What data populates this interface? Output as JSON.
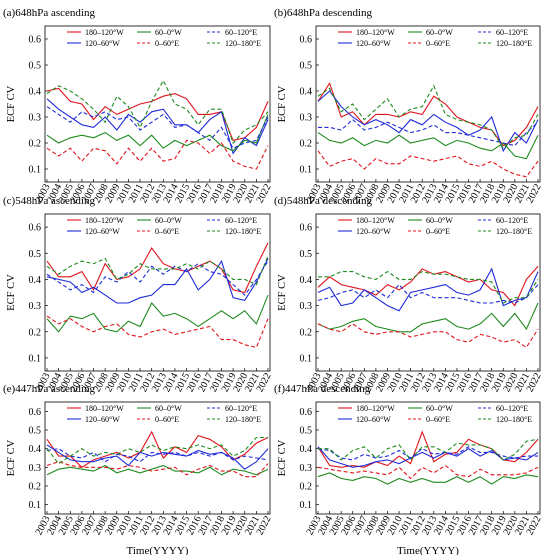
{
  "figure": {
    "xlabel": "Time(YYYY)",
    "ylabel": "ECF CV"
  },
  "legend_entries": [
    {
      "name": "180–120°W",
      "color": "#e0141c",
      "dash": false
    },
    {
      "name": "120–60°W",
      "color": "#1f2bd8",
      "dash": false
    },
    {
      "name": "60–0°W",
      "color": "#1f8a1f",
      "dash": false
    },
    {
      "name": "0–60°E",
      "color": "#e0141c",
      "dash": true
    },
    {
      "name": "60–120°E",
      "color": "#1f2bd8",
      "dash": true
    },
    {
      "name": "120–180°E",
      "color": "#1f8a1f",
      "dash": true
    }
  ],
  "chart_data": [
    {
      "type": "line",
      "title": "(a)648hPa ascending",
      "x": [
        2003,
        2004,
        2005,
        2006,
        2007,
        2008,
        2009,
        2010,
        2011,
        2012,
        2013,
        2014,
        2015,
        2016,
        2017,
        2018,
        2019,
        2020,
        2021,
        2022
      ],
      "ylim": [
        0.05,
        0.65
      ],
      "yticks": [
        0.1,
        0.2,
        0.3,
        0.4,
        0.5,
        0.6
      ],
      "series": [
        {
          "name": "180–120°W",
          "values": [
            0.4,
            0.41,
            0.36,
            0.35,
            0.29,
            0.34,
            0.31,
            0.33,
            0.35,
            0.36,
            0.38,
            0.39,
            0.37,
            0.31,
            0.31,
            0.32,
            0.21,
            0.22,
            0.26,
            0.36
          ]
        },
        {
          "name": "120–60°W",
          "values": [
            0.37,
            0.33,
            0.3,
            0.27,
            0.26,
            0.3,
            0.25,
            0.31,
            0.28,
            0.32,
            0.33,
            0.27,
            0.27,
            0.24,
            0.29,
            0.32,
            0.16,
            0.22,
            0.19,
            0.29
          ]
        },
        {
          "name": "60–0°W",
          "values": [
            0.23,
            0.2,
            0.22,
            0.23,
            0.22,
            0.24,
            0.21,
            0.23,
            0.19,
            0.23,
            0.18,
            0.21,
            0.19,
            0.21,
            0.23,
            0.19,
            0.17,
            0.21,
            0.2,
            0.31
          ]
        },
        {
          "name": "0–60°E",
          "values": [
            0.18,
            0.15,
            0.18,
            0.13,
            0.18,
            0.17,
            0.12,
            0.18,
            0.13,
            0.18,
            0.13,
            0.14,
            0.21,
            0.2,
            0.16,
            0.2,
            0.13,
            0.11,
            0.1,
            0.19
          ]
        },
        {
          "name": "60–120°E",
          "values": [
            0.34,
            0.31,
            0.28,
            0.32,
            0.3,
            0.32,
            0.29,
            0.3,
            0.25,
            0.28,
            0.31,
            0.26,
            0.27,
            0.24,
            0.21,
            0.26,
            0.18,
            0.2,
            0.21,
            0.3
          ]
        },
        {
          "name": "120–180°E",
          "values": [
            0.39,
            0.42,
            0.4,
            0.37,
            0.33,
            0.28,
            0.38,
            0.34,
            0.26,
            0.36,
            0.44,
            0.35,
            0.33,
            0.27,
            0.33,
            0.33,
            0.2,
            0.25,
            0.27,
            0.32
          ]
        }
      ]
    },
    {
      "type": "line",
      "title": "(b)648hPa descending",
      "x": [
        2003,
        2004,
        2005,
        2006,
        2007,
        2008,
        2009,
        2010,
        2011,
        2012,
        2013,
        2014,
        2015,
        2016,
        2017,
        2018,
        2019,
        2020,
        2021,
        2022
      ],
      "ylim": [
        0.05,
        0.65
      ],
      "yticks": [
        0.1,
        0.2,
        0.3,
        0.4,
        0.5,
        0.6
      ],
      "series": [
        {
          "name": "180–120°W",
          "values": [
            0.36,
            0.43,
            0.3,
            0.32,
            0.27,
            0.31,
            0.31,
            0.3,
            0.32,
            0.31,
            0.38,
            0.35,
            0.3,
            0.28,
            0.26,
            0.25,
            0.19,
            0.21,
            0.26,
            0.34
          ]
        },
        {
          "name": "120–60°W",
          "values": [
            0.36,
            0.4,
            0.34,
            0.3,
            0.27,
            0.29,
            0.27,
            0.24,
            0.29,
            0.27,
            0.31,
            0.28,
            0.26,
            0.23,
            0.25,
            0.3,
            0.17,
            0.24,
            0.2,
            0.29
          ]
        },
        {
          "name": "60–0°W",
          "values": [
            0.24,
            0.21,
            0.2,
            0.22,
            0.19,
            0.21,
            0.2,
            0.23,
            0.2,
            0.21,
            0.22,
            0.19,
            0.21,
            0.2,
            0.18,
            0.17,
            0.2,
            0.15,
            0.14,
            0.23
          ]
        },
        {
          "name": "0–60°E",
          "values": [
            0.17,
            0.11,
            0.13,
            0.14,
            0.1,
            0.14,
            0.12,
            0.12,
            0.15,
            0.14,
            0.13,
            0.14,
            0.15,
            0.12,
            0.11,
            0.13,
            0.1,
            0.08,
            0.07,
            0.13
          ]
        },
        {
          "name": "60–120°E",
          "values": [
            0.26,
            0.26,
            0.25,
            0.29,
            0.25,
            0.26,
            0.28,
            0.26,
            0.24,
            0.25,
            0.27,
            0.24,
            0.24,
            0.23,
            0.22,
            0.21,
            0.2,
            0.19,
            0.24,
            0.28
          ]
        },
        {
          "name": "120–180°E",
          "values": [
            0.38,
            0.41,
            0.32,
            0.35,
            0.29,
            0.33,
            0.37,
            0.3,
            0.33,
            0.34,
            0.42,
            0.31,
            0.29,
            0.28,
            0.27,
            0.25,
            0.18,
            0.22,
            0.23,
            0.31
          ]
        }
      ]
    },
    {
      "type": "line",
      "title": "(c)548hPa ascending",
      "x": [
        2003,
        2004,
        2005,
        2006,
        2007,
        2008,
        2009,
        2010,
        2011,
        2012,
        2013,
        2014,
        2015,
        2016,
        2017,
        2018,
        2019,
        2020,
        2021,
        2022
      ],
      "ylim": [
        0.05,
        0.65
      ],
      "yticks": [
        0.1,
        0.2,
        0.3,
        0.4,
        0.5,
        0.6
      ],
      "series": [
        {
          "name": "180–120°W",
          "values": [
            0.47,
            0.41,
            0.41,
            0.43,
            0.36,
            0.46,
            0.4,
            0.41,
            0.44,
            0.52,
            0.46,
            0.44,
            0.43,
            0.45,
            0.47,
            0.44,
            0.36,
            0.35,
            0.45,
            0.54
          ]
        },
        {
          "name": "120–60°W",
          "values": [
            0.41,
            0.4,
            0.39,
            0.35,
            0.37,
            0.34,
            0.31,
            0.31,
            0.33,
            0.34,
            0.38,
            0.38,
            0.44,
            0.36,
            0.4,
            0.47,
            0.33,
            0.32,
            0.39,
            0.48
          ]
        },
        {
          "name": "60–0°W",
          "values": [
            0.25,
            0.2,
            0.26,
            0.25,
            0.27,
            0.21,
            0.2,
            0.24,
            0.22,
            0.31,
            0.26,
            0.27,
            0.25,
            0.22,
            0.25,
            0.28,
            0.25,
            0.28,
            0.23,
            0.34
          ]
        },
        {
          "name": "0–60°E",
          "values": [
            0.26,
            0.23,
            0.25,
            0.22,
            0.2,
            0.22,
            0.23,
            0.19,
            0.18,
            0.2,
            0.21,
            0.19,
            0.2,
            0.21,
            0.22,
            0.17,
            0.17,
            0.15,
            0.14,
            0.25
          ]
        },
        {
          "name": "60–120°E",
          "values": [
            0.42,
            0.39,
            0.36,
            0.38,
            0.35,
            0.41,
            0.39,
            0.43,
            0.39,
            0.45,
            0.42,
            0.45,
            0.43,
            0.46,
            0.43,
            0.42,
            0.38,
            0.34,
            0.4,
            0.47
          ]
        },
        {
          "name": "120–180°E",
          "values": [
            0.45,
            0.42,
            0.45,
            0.47,
            0.46,
            0.48,
            0.4,
            0.42,
            0.46,
            0.44,
            0.44,
            0.44,
            0.46,
            0.44,
            0.47,
            0.44,
            0.4,
            0.4,
            0.38,
            0.49
          ]
        }
      ]
    },
    {
      "type": "line",
      "title": "(d)548hPa descending",
      "x": [
        2003,
        2004,
        2005,
        2006,
        2007,
        2008,
        2009,
        2010,
        2011,
        2012,
        2013,
        2014,
        2015,
        2016,
        2017,
        2018,
        2019,
        2020,
        2021,
        2022
      ],
      "ylim": [
        0.05,
        0.65
      ],
      "yticks": [
        0.1,
        0.2,
        0.3,
        0.4,
        0.5,
        0.6
      ],
      "series": [
        {
          "name": "180–120°W",
          "values": [
            0.37,
            0.41,
            0.38,
            0.37,
            0.36,
            0.34,
            0.38,
            0.36,
            0.39,
            0.44,
            0.42,
            0.43,
            0.41,
            0.39,
            0.4,
            0.36,
            0.35,
            0.3,
            0.4,
            0.45
          ]
        },
        {
          "name": "120–60°W",
          "values": [
            0.35,
            0.37,
            0.3,
            0.31,
            0.36,
            0.33,
            0.3,
            0.28,
            0.35,
            0.36,
            0.37,
            0.38,
            0.35,
            0.34,
            0.36,
            0.44,
            0.3,
            0.32,
            0.33,
            0.43
          ]
        },
        {
          "name": "60–0°W",
          "values": [
            0.23,
            0.21,
            0.22,
            0.24,
            0.25,
            0.22,
            0.21,
            0.2,
            0.2,
            0.23,
            0.24,
            0.25,
            0.22,
            0.21,
            0.23,
            0.27,
            0.22,
            0.27,
            0.21,
            0.31
          ]
        },
        {
          "name": "0–60°E",
          "values": [
            0.23,
            0.21,
            0.2,
            0.23,
            0.2,
            0.19,
            0.2,
            0.2,
            0.18,
            0.19,
            0.2,
            0.2,
            0.17,
            0.16,
            0.19,
            0.18,
            0.16,
            0.17,
            0.14,
            0.21
          ]
        },
        {
          "name": "60–120°E",
          "values": [
            0.32,
            0.33,
            0.35,
            0.36,
            0.33,
            0.36,
            0.33,
            0.38,
            0.33,
            0.35,
            0.33,
            0.33,
            0.33,
            0.32,
            0.31,
            0.31,
            0.32,
            0.31,
            0.33,
            0.38
          ]
        },
        {
          "name": "120–180°E",
          "values": [
            0.41,
            0.41,
            0.43,
            0.43,
            0.41,
            0.4,
            0.43,
            0.4,
            0.4,
            0.43,
            0.42,
            0.42,
            0.41,
            0.4,
            0.4,
            0.39,
            0.31,
            0.33,
            0.33,
            0.4
          ]
        }
      ]
    },
    {
      "type": "line",
      "title": "(e)447hPa ascending",
      "x": [
        2003,
        2004,
        2005,
        2006,
        2007,
        2008,
        2009,
        2010,
        2011,
        2012,
        2013,
        2014,
        2015,
        2016,
        2017,
        2018,
        2019,
        2020,
        2021,
        2022
      ],
      "ylim": [
        0.05,
        0.65
      ],
      "yticks": [
        0.1,
        0.2,
        0.3,
        0.4,
        0.5,
        0.6
      ],
      "series": [
        {
          "name": "180–120°W",
          "values": [
            0.45,
            0.36,
            0.36,
            0.3,
            0.34,
            0.36,
            0.38,
            0.35,
            0.38,
            0.49,
            0.35,
            0.41,
            0.38,
            0.47,
            0.45,
            0.41,
            0.34,
            0.37,
            0.43,
            0.46
          ]
        },
        {
          "name": "120–60°W",
          "values": [
            0.42,
            0.38,
            0.34,
            0.33,
            0.33,
            0.35,
            0.36,
            0.31,
            0.38,
            0.36,
            0.38,
            0.37,
            0.36,
            0.39,
            0.37,
            0.38,
            0.35,
            0.29,
            0.33,
            0.4
          ]
        },
        {
          "name": "60–0°W",
          "values": [
            0.26,
            0.29,
            0.3,
            0.29,
            0.28,
            0.31,
            0.27,
            0.29,
            0.27,
            0.29,
            0.31,
            0.28,
            0.28,
            0.27,
            0.3,
            0.26,
            0.29,
            0.28,
            0.26,
            0.29
          ]
        },
        {
          "name": "0–60°E",
          "values": [
            0.31,
            0.33,
            0.31,
            0.3,
            0.3,
            0.3,
            0.29,
            0.31,
            0.3,
            0.28,
            0.29,
            0.3,
            0.26,
            0.29,
            0.31,
            0.28,
            0.28,
            0.25,
            0.25,
            0.32
          ]
        },
        {
          "name": "60–120°E",
          "values": [
            0.39,
            0.4,
            0.36,
            0.35,
            0.38,
            0.33,
            0.37,
            0.36,
            0.33,
            0.38,
            0.37,
            0.38,
            0.36,
            0.38,
            0.36,
            0.38,
            0.34,
            0.36,
            0.35,
            0.34
          ]
        },
        {
          "name": "120–180°E",
          "values": [
            0.4,
            0.32,
            0.36,
            0.4,
            0.36,
            0.38,
            0.37,
            0.4,
            0.38,
            0.42,
            0.39,
            0.41,
            0.4,
            0.42,
            0.4,
            0.42,
            0.36,
            0.39,
            0.46,
            0.46
          ]
        }
      ]
    },
    {
      "type": "line",
      "title": "(f)447hPa descending",
      "x": [
        2003,
        2004,
        2005,
        2006,
        2007,
        2008,
        2009,
        2010,
        2011,
        2012,
        2013,
        2014,
        2015,
        2016,
        2017,
        2018,
        2019,
        2020,
        2021,
        2022
      ],
      "ylim": [
        0.05,
        0.65
      ],
      "yticks": [
        0.1,
        0.2,
        0.3,
        0.4,
        0.5,
        0.6
      ],
      "series": [
        {
          "name": "180–120°W",
          "values": [
            0.41,
            0.31,
            0.3,
            0.31,
            0.3,
            0.33,
            0.31,
            0.36,
            0.32,
            0.49,
            0.33,
            0.37,
            0.38,
            0.45,
            0.42,
            0.4,
            0.34,
            0.33,
            0.38,
            0.45
          ]
        },
        {
          "name": "120–60°W",
          "values": [
            0.41,
            0.34,
            0.32,
            0.3,
            0.31,
            0.33,
            0.34,
            0.32,
            0.35,
            0.38,
            0.35,
            0.38,
            0.36,
            0.4,
            0.36,
            0.39,
            0.34,
            0.35,
            0.34,
            0.38
          ]
        },
        {
          "name": "60–0°W",
          "values": [
            0.25,
            0.27,
            0.24,
            0.23,
            0.25,
            0.24,
            0.21,
            0.24,
            0.22,
            0.24,
            0.22,
            0.22,
            0.25,
            0.22,
            0.25,
            0.21,
            0.25,
            0.24,
            0.26,
            0.25
          ]
        },
        {
          "name": "0–60°E",
          "values": [
            0.3,
            0.29,
            0.28,
            0.27,
            0.28,
            0.27,
            0.26,
            0.3,
            0.24,
            0.3,
            0.27,
            0.31,
            0.26,
            0.25,
            0.29,
            0.26,
            0.26,
            0.26,
            0.27,
            0.3
          ]
        },
        {
          "name": "60–120°E",
          "values": [
            0.4,
            0.39,
            0.35,
            0.34,
            0.37,
            0.35,
            0.36,
            0.39,
            0.35,
            0.4,
            0.37,
            0.38,
            0.37,
            0.41,
            0.38,
            0.38,
            0.36,
            0.35,
            0.36,
            0.36
          ]
        },
        {
          "name": "120–180°E",
          "values": [
            0.4,
            0.4,
            0.34,
            0.39,
            0.41,
            0.35,
            0.4,
            0.42,
            0.34,
            0.41,
            0.41,
            0.38,
            0.43,
            0.42,
            0.42,
            0.4,
            0.34,
            0.37,
            0.44,
            0.45
          ]
        }
      ]
    }
  ]
}
